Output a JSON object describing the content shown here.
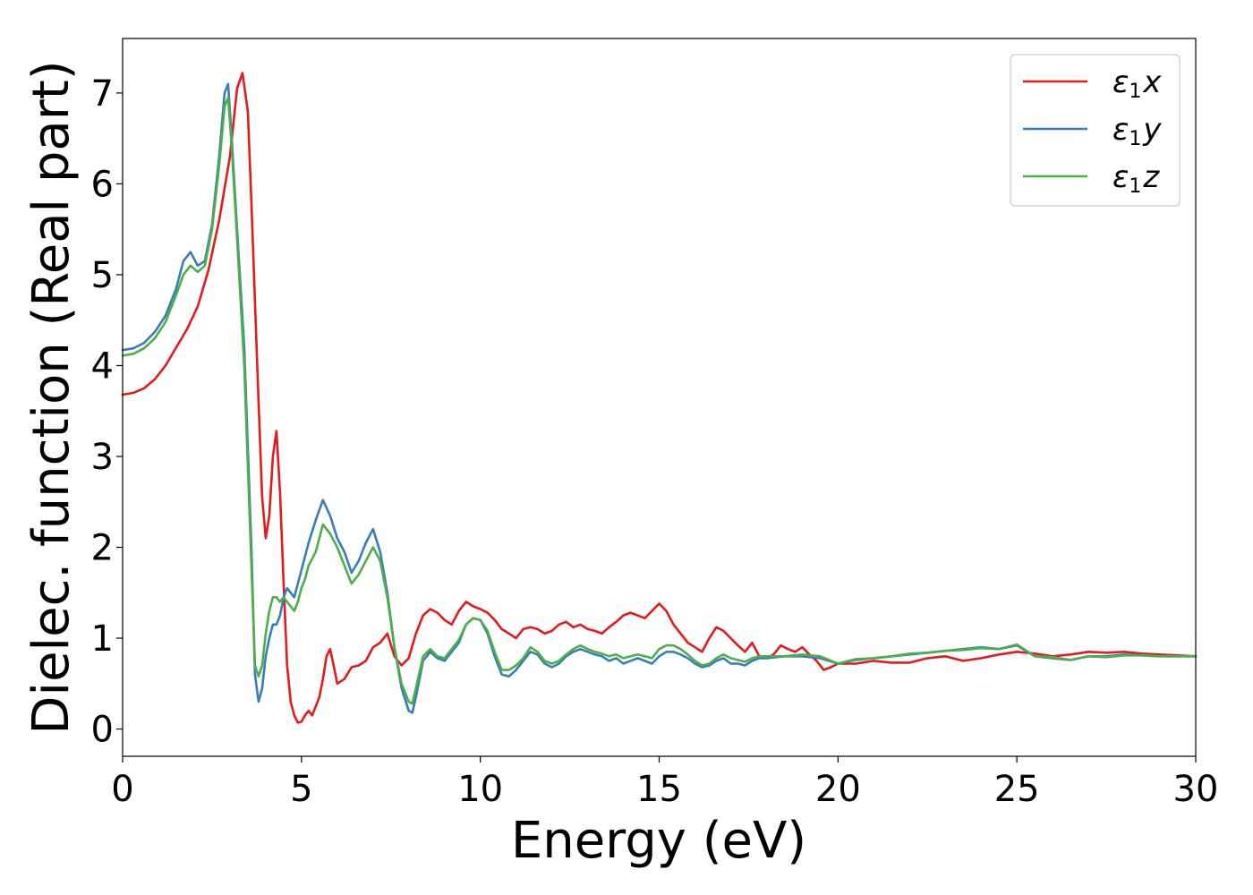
{
  "chart_data": {
    "type": "line",
    "title": "",
    "xlabel": "Energy (eV)",
    "ylabel": "Dielec. function (Real part)",
    "xlim": [
      0,
      30
    ],
    "ylim": [
      -0.3,
      7.6
    ],
    "xticks": [
      0,
      5,
      10,
      15,
      20,
      25,
      30
    ],
    "yticks": [
      0,
      1,
      2,
      3,
      4,
      5,
      6,
      7
    ],
    "grid": false,
    "legend_position": "top-right",
    "series": [
      {
        "name": "ε1x",
        "legend_symbol": "ε",
        "legend_sub": "1",
        "legend_var": "x",
        "color": "#e41a1c",
        "x": [
          0,
          0.3,
          0.6,
          0.9,
          1.2,
          1.5,
          1.8,
          2.1,
          2.4,
          2.7,
          3.0,
          3.2,
          3.35,
          3.5,
          3.6,
          3.7,
          3.8,
          3.9,
          4.0,
          4.1,
          4.2,
          4.3,
          4.4,
          4.5,
          4.6,
          4.7,
          4.8,
          4.9,
          5.0,
          5.1,
          5.2,
          5.3,
          5.4,
          5.5,
          5.6,
          5.7,
          5.8,
          5.9,
          6.0,
          6.2,
          6.4,
          6.6,
          6.8,
          7.0,
          7.2,
          7.4,
          7.6,
          7.8,
          8.0,
          8.2,
          8.4,
          8.6,
          8.8,
          9.0,
          9.2,
          9.4,
          9.6,
          9.8,
          10.0,
          10.2,
          10.4,
          10.6,
          10.8,
          11.0,
          11.2,
          11.4,
          11.6,
          11.8,
          12.0,
          12.2,
          12.4,
          12.6,
          12.8,
          13.0,
          13.2,
          13.4,
          13.6,
          13.8,
          14.0,
          14.2,
          14.4,
          14.6,
          14.8,
          15.0,
          15.2,
          15.4,
          15.6,
          15.8,
          16.0,
          16.2,
          16.4,
          16.6,
          16.8,
          17.0,
          17.2,
          17.4,
          17.6,
          17.8,
          18.0,
          18.2,
          18.4,
          18.6,
          18.8,
          19.0,
          19.2,
          19.4,
          19.6,
          19.8,
          20.0,
          20.5,
          21.0,
          21.5,
          22.0,
          22.5,
          23.0,
          23.5,
          24.0,
          24.5,
          25.0,
          25.5,
          26.0,
          26.5,
          27.0,
          27.5,
          28.0,
          28.5,
          29.0,
          29.5,
          30.0
        ],
        "values": [
          3.68,
          3.7,
          3.75,
          3.85,
          4.0,
          4.2,
          4.4,
          4.65,
          5.05,
          5.6,
          6.3,
          7.05,
          7.22,
          6.8,
          5.8,
          4.7,
          3.6,
          2.55,
          2.1,
          2.35,
          3.0,
          3.28,
          2.6,
          1.6,
          0.7,
          0.3,
          0.15,
          0.07,
          0.08,
          0.15,
          0.2,
          0.15,
          0.25,
          0.35,
          0.55,
          0.8,
          0.88,
          0.7,
          0.5,
          0.55,
          0.68,
          0.7,
          0.75,
          0.9,
          0.95,
          1.05,
          0.8,
          0.7,
          0.78,
          1.05,
          1.25,
          1.32,
          1.28,
          1.2,
          1.15,
          1.3,
          1.4,
          1.35,
          1.32,
          1.28,
          1.2,
          1.1,
          1.05,
          1.0,
          1.1,
          1.12,
          1.1,
          1.05,
          1.08,
          1.15,
          1.18,
          1.12,
          1.15,
          1.1,
          1.08,
          1.05,
          1.12,
          1.18,
          1.25,
          1.28,
          1.25,
          1.22,
          1.3,
          1.38,
          1.3,
          1.15,
          1.05,
          0.95,
          0.9,
          0.85,
          1.0,
          1.12,
          1.08,
          1.0,
          0.92,
          0.85,
          0.95,
          0.8,
          0.78,
          0.82,
          0.92,
          0.88,
          0.85,
          0.9,
          0.82,
          0.75,
          0.65,
          0.68,
          0.72,
          0.72,
          0.75,
          0.73,
          0.73,
          0.78,
          0.8,
          0.75,
          0.78,
          0.82,
          0.85,
          0.83,
          0.8,
          0.82,
          0.85,
          0.84,
          0.85,
          0.83,
          0.82,
          0.81,
          0.8
        ]
      },
      {
        "name": "ε1y",
        "legend_symbol": "ε",
        "legend_sub": "1",
        "legend_var": "y",
        "color": "#377eb8",
        "x": [
          0,
          0.3,
          0.6,
          0.9,
          1.2,
          1.5,
          1.7,
          1.9,
          2.1,
          2.3,
          2.5,
          2.7,
          2.85,
          2.95,
          3.05,
          3.2,
          3.4,
          3.6,
          3.7,
          3.8,
          3.9,
          4.0,
          4.1,
          4.2,
          4.3,
          4.4,
          4.5,
          4.6,
          4.7,
          4.8,
          4.9,
          5.0,
          5.1,
          5.2,
          5.4,
          5.6,
          5.8,
          6.0,
          6.2,
          6.4,
          6.6,
          6.8,
          7.0,
          7.2,
          7.4,
          7.6,
          7.8,
          8.0,
          8.1,
          8.2,
          8.4,
          8.6,
          8.8,
          9.0,
          9.2,
          9.4,
          9.6,
          9.8,
          10.0,
          10.2,
          10.4,
          10.6,
          10.8,
          11.0,
          11.2,
          11.4,
          11.6,
          11.8,
          12.0,
          12.2,
          12.4,
          12.6,
          12.8,
          13.0,
          13.2,
          13.4,
          13.6,
          13.8,
          14.0,
          14.2,
          14.4,
          14.6,
          14.8,
          15.0,
          15.2,
          15.4,
          15.6,
          15.8,
          16.0,
          16.2,
          16.4,
          16.6,
          16.8,
          17.0,
          17.2,
          17.4,
          17.6,
          17.8,
          18.0,
          18.5,
          19.0,
          19.5,
          20.0,
          20.5,
          21.0,
          21.5,
          22.0,
          22.5,
          23.0,
          23.5,
          24.0,
          24.5,
          25.0,
          25.5,
          26.0,
          26.5,
          27.0,
          27.5,
          28.0,
          28.5,
          29.0,
          29.5,
          30.0
        ],
        "values": [
          4.17,
          4.19,
          4.25,
          4.37,
          4.55,
          4.85,
          5.15,
          5.25,
          5.1,
          5.15,
          5.55,
          6.3,
          7.0,
          7.1,
          6.5,
          5.5,
          4.2,
          2.0,
          0.6,
          0.3,
          0.45,
          0.8,
          1.0,
          1.15,
          1.15,
          1.25,
          1.45,
          1.55,
          1.5,
          1.45,
          1.6,
          1.75,
          1.9,
          2.05,
          2.3,
          2.52,
          2.35,
          2.1,
          1.95,
          1.72,
          1.85,
          2.05,
          2.2,
          1.95,
          1.5,
          0.9,
          0.45,
          0.2,
          0.18,
          0.35,
          0.75,
          0.85,
          0.78,
          0.75,
          0.85,
          0.95,
          1.15,
          1.22,
          1.2,
          1.05,
          0.8,
          0.6,
          0.58,
          0.65,
          0.75,
          0.85,
          0.82,
          0.72,
          0.68,
          0.72,
          0.8,
          0.85,
          0.88,
          0.85,
          0.82,
          0.8,
          0.75,
          0.78,
          0.72,
          0.75,
          0.78,
          0.75,
          0.72,
          0.8,
          0.85,
          0.85,
          0.82,
          0.78,
          0.72,
          0.68,
          0.7,
          0.75,
          0.78,
          0.72,
          0.72,
          0.7,
          0.75,
          0.78,
          0.78,
          0.8,
          0.8,
          0.78,
          0.72,
          0.76,
          0.78,
          0.8,
          0.82,
          0.84,
          0.86,
          0.88,
          0.9,
          0.88,
          0.92,
          0.8,
          0.78,
          0.76,
          0.8,
          0.8,
          0.82,
          0.81,
          0.8,
          0.8,
          0.8
        ]
      },
      {
        "name": "ε1z",
        "legend_symbol": "ε",
        "legend_sub": "1",
        "legend_var": "z",
        "color": "#4daf4a",
        "x": [
          0,
          0.3,
          0.6,
          0.9,
          1.2,
          1.5,
          1.7,
          1.9,
          2.1,
          2.3,
          2.5,
          2.7,
          2.85,
          2.95,
          3.05,
          3.2,
          3.4,
          3.6,
          3.7,
          3.8,
          3.9,
          4.0,
          4.1,
          4.2,
          4.3,
          4.4,
          4.5,
          4.6,
          4.7,
          4.8,
          4.9,
          5.0,
          5.1,
          5.2,
          5.4,
          5.6,
          5.8,
          6.0,
          6.2,
          6.4,
          6.6,
          6.8,
          7.0,
          7.2,
          7.4,
          7.6,
          7.8,
          8.0,
          8.1,
          8.2,
          8.4,
          8.6,
          8.8,
          9.0,
          9.2,
          9.4,
          9.6,
          9.8,
          10.0,
          10.2,
          10.4,
          10.6,
          10.8,
          11.0,
          11.2,
          11.4,
          11.6,
          11.8,
          12.0,
          12.2,
          12.4,
          12.6,
          12.8,
          13.0,
          13.2,
          13.4,
          13.6,
          13.8,
          14.0,
          14.2,
          14.4,
          14.6,
          14.8,
          15.0,
          15.2,
          15.4,
          15.6,
          15.8,
          16.0,
          16.2,
          16.4,
          16.6,
          16.8,
          17.0,
          17.2,
          17.4,
          17.6,
          17.8,
          18.0,
          18.5,
          19.0,
          19.5,
          20.0,
          20.5,
          21.0,
          21.5,
          22.0,
          22.5,
          23.0,
          23.5,
          24.0,
          24.5,
          25.0,
          25.5,
          26.0,
          26.5,
          27.0,
          27.5,
          28.0,
          28.5,
          29.0,
          29.5,
          30.0
        ],
        "values": [
          4.11,
          4.13,
          4.19,
          4.3,
          4.48,
          4.78,
          5.0,
          5.1,
          5.03,
          5.1,
          5.5,
          6.2,
          6.85,
          6.95,
          6.4,
          5.4,
          4.0,
          1.8,
          0.7,
          0.58,
          0.7,
          1.05,
          1.3,
          1.45,
          1.45,
          1.4,
          1.45,
          1.4,
          1.35,
          1.3,
          1.4,
          1.55,
          1.65,
          1.8,
          1.95,
          2.25,
          2.15,
          2.0,
          1.8,
          1.6,
          1.7,
          1.85,
          2.0,
          1.85,
          1.45,
          0.9,
          0.5,
          0.3,
          0.28,
          0.45,
          0.8,
          0.88,
          0.8,
          0.78,
          0.88,
          0.98,
          1.15,
          1.22,
          1.2,
          1.08,
          0.85,
          0.65,
          0.65,
          0.7,
          0.78,
          0.9,
          0.85,
          0.75,
          0.72,
          0.75,
          0.82,
          0.88,
          0.92,
          0.88,
          0.85,
          0.83,
          0.8,
          0.82,
          0.78,
          0.8,
          0.82,
          0.8,
          0.78,
          0.88,
          0.92,
          0.92,
          0.88,
          0.82,
          0.75,
          0.7,
          0.72,
          0.78,
          0.82,
          0.78,
          0.76,
          0.74,
          0.78,
          0.8,
          0.8,
          0.8,
          0.82,
          0.8,
          0.72,
          0.77,
          0.78,
          0.8,
          0.83,
          0.84,
          0.86,
          0.87,
          0.89,
          0.88,
          0.93,
          0.8,
          0.79,
          0.76,
          0.8,
          0.79,
          0.81,
          0.81,
          0.8,
          0.8,
          0.8
        ]
      }
    ]
  }
}
